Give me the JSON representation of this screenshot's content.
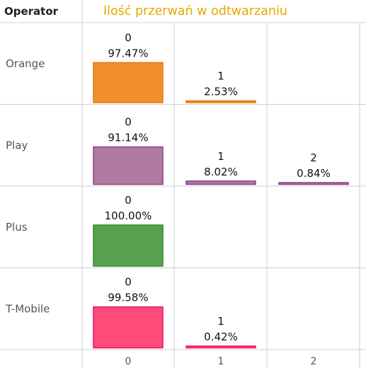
{
  "header": {
    "column_label": "Operator",
    "title": "Ilość przerwań w odtwarzaniu",
    "title_color": "#E8A800"
  },
  "chart_data": {
    "type": "bar",
    "layout": "small-multiples rows",
    "x": [
      0,
      1,
      2
    ],
    "xlabel": "",
    "ylabel": "",
    "grid": true,
    "legend": "none",
    "rows": [
      {
        "operator": "Orange",
        "color": "#F28E2B",
        "stroke": "#E07B10",
        "bars": [
          {
            "x": 0,
            "value": 97.47,
            "label": "97.47%"
          },
          {
            "x": 1,
            "value": 2.53,
            "label": "2.53%"
          }
        ]
      },
      {
        "operator": "Play",
        "color": "#B07AA1",
        "stroke": "#8E3F85",
        "bars": [
          {
            "x": 0,
            "value": 91.14,
            "label": "91.14%"
          },
          {
            "x": 1,
            "value": 8.02,
            "label": "8.02%"
          },
          {
            "x": 2,
            "value": 0.84,
            "label": "0.84%"
          }
        ]
      },
      {
        "operator": "Plus",
        "color": "#59A14F",
        "stroke": "#2E8B2E",
        "bars": [
          {
            "x": 0,
            "value": 100.0,
            "label": "100.00%"
          }
        ]
      },
      {
        "operator": "T-Mobile",
        "color": "#FF4B7A",
        "stroke": "#E8145A",
        "bars": [
          {
            "x": 0,
            "value": 99.58,
            "label": "99.58%"
          },
          {
            "x": 1,
            "value": 0.42,
            "label": "0.42%"
          }
        ]
      }
    ],
    "x_tick_labels": [
      "0",
      "1",
      "2"
    ]
  }
}
